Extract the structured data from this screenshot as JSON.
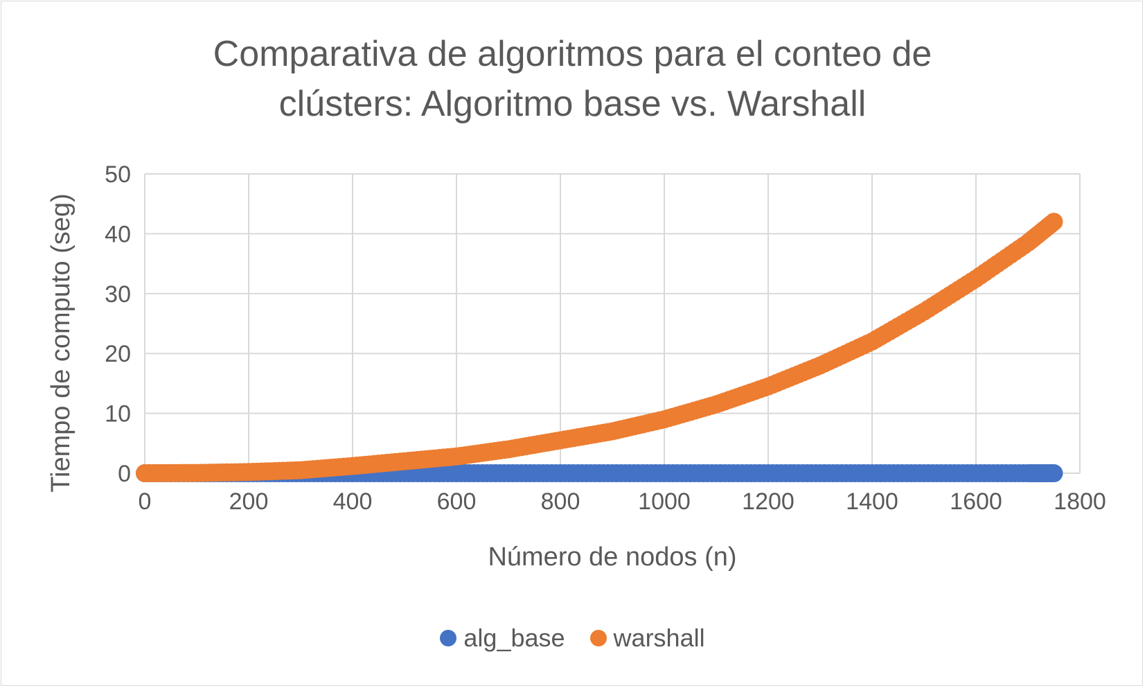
{
  "chart_data": {
    "type": "scatter",
    "title_lines": [
      "Comparativa de algoritmos para el conteo de",
      "clústers: Algoritmo base vs. Warshall"
    ],
    "xlabel": "Número de nodos (n)",
    "ylabel": "Tiempo de computo (seg)",
    "xlim": [
      0,
      1800
    ],
    "ylim": [
      0,
      50
    ],
    "xticks": [
      0,
      200,
      400,
      600,
      800,
      1000,
      1200,
      1400,
      1600,
      1800
    ],
    "yticks": [
      0,
      10,
      20,
      30,
      40,
      50
    ],
    "grid": true,
    "legend_position": "bottom",
    "series": [
      {
        "name": "alg_base",
        "color": "#4472c4",
        "x": [
          0,
          100,
          200,
          300,
          400,
          500,
          600,
          700,
          800,
          900,
          1000,
          1100,
          1200,
          1300,
          1400,
          1500,
          1600,
          1700,
          1750
        ],
        "y": [
          0,
          0,
          0,
          0,
          0,
          0,
          0,
          0,
          0,
          0,
          0,
          0,
          0,
          0,
          0,
          0,
          0,
          0,
          0
        ]
      },
      {
        "name": "warshall",
        "color": "#ed7d31",
        "x": [
          0,
          100,
          200,
          300,
          400,
          500,
          600,
          700,
          800,
          900,
          1000,
          1100,
          1200,
          1300,
          1400,
          1500,
          1600,
          1700,
          1750
        ],
        "y": [
          0,
          0.05,
          0.2,
          0.5,
          1.2,
          2.0,
          2.8,
          4.0,
          5.5,
          7.0,
          9.0,
          11.5,
          14.5,
          18.0,
          22.0,
          27.0,
          32.5,
          38.5,
          42.0
        ]
      }
    ]
  }
}
